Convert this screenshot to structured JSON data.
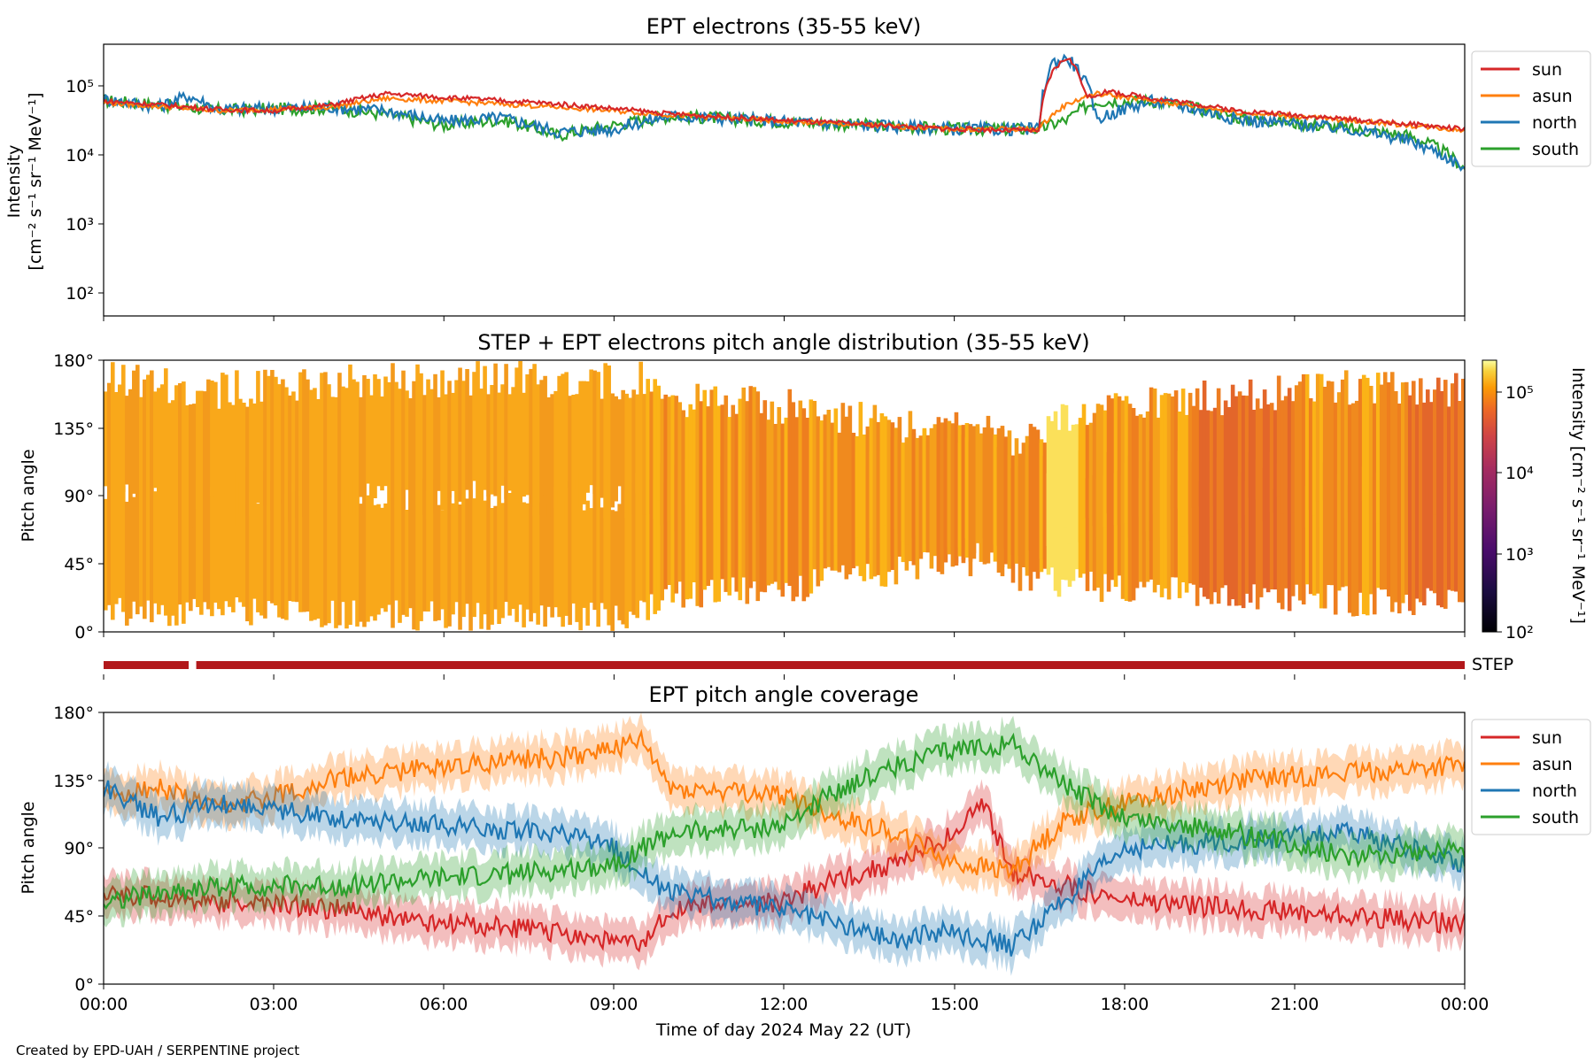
{
  "credit": "Created by EPD-UAH / SERPENTINE project",
  "colors": {
    "sun": "#d62728",
    "asun": "#ff7f0e",
    "north": "#1f77b4",
    "south": "#2ca02c",
    "step_bar": "#b2181b"
  },
  "chart_data": [
    {
      "type": "line",
      "title": "EPT electrons (35-55 keV)",
      "ylabel_line1": "Intensity",
      "ylabel_line2": "[cm⁻² s⁻¹ sr⁻¹ MeV⁻¹]",
      "yscale": "log",
      "ylim": [
        50,
        350000
      ],
      "yticks": [
        "10²",
        "10³",
        "10⁴",
        "10⁵"
      ],
      "xlim": [
        "00:00",
        "24:00"
      ],
      "legend_position": "outside-right-top",
      "legend": [
        "sun",
        "asun",
        "north",
        "south"
      ],
      "series": [
        {
          "name": "sun",
          "points": [
            [
              "00:00",
              55000
            ],
            [
              "02:00",
              42000
            ],
            [
              "03:00",
              40000
            ],
            [
              "04:00",
              48000
            ],
            [
              "05:00",
              70000
            ],
            [
              "06:00",
              62000
            ],
            [
              "08:00",
              50000
            ],
            [
              "10:00",
              36000
            ],
            [
              "12:00",
              29000
            ],
            [
              "15:00",
              22000
            ],
            [
              "16:30",
              21000
            ],
            [
              "16:45",
              150000
            ],
            [
              "17:00",
              230000
            ],
            [
              "17:20",
              60000
            ],
            [
              "17:40",
              75000
            ],
            [
              "18:30",
              60000
            ],
            [
              "20:00",
              40000
            ],
            [
              "22:00",
              30000
            ],
            [
              "24:00",
              22000
            ]
          ]
        },
        {
          "name": "asun",
          "points": [
            [
              "00:00",
              52000
            ],
            [
              "02:00",
              40000
            ],
            [
              "04:00",
              45000
            ],
            [
              "05:00",
              60000
            ],
            [
              "06:00",
              55000
            ],
            [
              "08:00",
              45000
            ],
            [
              "10:00",
              35000
            ],
            [
              "12:00",
              28000
            ],
            [
              "15:00",
              22000
            ],
            [
              "16:30",
              22000
            ],
            [
              "17:00",
              50000
            ],
            [
              "17:30",
              70000
            ],
            [
              "18:30",
              55000
            ],
            [
              "20:00",
              38000
            ],
            [
              "22:00",
              29000
            ],
            [
              "24:00",
              21000
            ]
          ]
        },
        {
          "name": "north",
          "points": [
            [
              "00:00",
              58000
            ],
            [
              "01:00",
              46000
            ],
            [
              "01:30",
              65000
            ],
            [
              "02:00",
              42000
            ],
            [
              "04:00",
              45000
            ],
            [
              "05:00",
              40000
            ],
            [
              "06:00",
              28000
            ],
            [
              "07:00",
              32000
            ],
            [
              "08:00",
              20000
            ],
            [
              "09:00",
              22000
            ],
            [
              "10:00",
              34000
            ],
            [
              "12:00",
              28000
            ],
            [
              "15:00",
              22000
            ],
            [
              "16:30",
              22000
            ],
            [
              "16:45",
              200000
            ],
            [
              "17:00",
              220000
            ],
            [
              "17:30",
              30000
            ],
            [
              "18:30",
              55000
            ],
            [
              "20:00",
              30000
            ],
            [
              "22:00",
              22000
            ],
            [
              "23:00",
              15000
            ],
            [
              "24:00",
              6000
            ]
          ]
        },
        {
          "name": "south",
          "points": [
            [
              "00:00",
              56000
            ],
            [
              "02:00",
              41000
            ],
            [
              "04:00",
              44000
            ],
            [
              "05:00",
              35000
            ],
            [
              "06:00",
              25000
            ],
            [
              "07:00",
              30000
            ],
            [
              "08:00",
              18000
            ],
            [
              "09:00",
              25000
            ],
            [
              "10:00",
              34000
            ],
            [
              "12:00",
              28000
            ],
            [
              "15:00",
              22000
            ],
            [
              "16:30",
              22000
            ],
            [
              "17:00",
              30000
            ],
            [
              "17:30",
              55000
            ],
            [
              "18:30",
              55000
            ],
            [
              "20:00",
              32000
            ],
            [
              "22:00",
              22000
            ],
            [
              "23:00",
              18000
            ],
            [
              "24:00",
              6000
            ]
          ]
        }
      ]
    },
    {
      "type": "heatmap",
      "title": "STEP + EPT electrons pitch angle distribution (35-55 keV)",
      "ylabel": "Pitch angle",
      "ylim": [
        0,
        180
      ],
      "yticks": [
        "0°",
        "45°",
        "90°",
        "135°",
        "180°"
      ],
      "xlim": [
        "00:00",
        "24:00"
      ],
      "colorbar": {
        "label": "Intensity [cm⁻² s⁻¹ sr⁻¹ MeV⁻¹]",
        "scale": "log",
        "range": [
          100,
          250000
        ],
        "ticks": [
          "10²",
          "10³",
          "10⁴",
          "10⁵"
        ],
        "colormap": "inferno-like"
      }
    },
    {
      "type": "bar",
      "label": "STEP",
      "segments": [
        [
          "00:00",
          "01:30"
        ],
        [
          "01:38",
          "24:00"
        ]
      ]
    },
    {
      "type": "line",
      "title": "EPT pitch angle coverage",
      "ylabel": "Pitch angle",
      "ylim": [
        0,
        180
      ],
      "yticks": [
        "0°",
        "45°",
        "90°",
        "135°",
        "180°"
      ],
      "xticks": [
        "00:00",
        "03:00",
        "06:00",
        "09:00",
        "12:00",
        "15:00",
        "18:00",
        "21:00",
        "00:00"
      ],
      "xlabel": "Time of day 2024 May 22 (UT)",
      "legend_position": "outside-right-top",
      "legend": [
        "sun",
        "asun",
        "north",
        "south"
      ],
      "series": [
        {
          "name": "sun",
          "points": [
            [
              "00:00",
              60
            ],
            [
              "02:00",
              55
            ],
            [
              "04:00",
              50
            ],
            [
              "06:00",
              40
            ],
            [
              "08:00",
              35
            ],
            [
              "09:30",
              25
            ],
            [
              "10:00",
              50
            ],
            [
              "12:00",
              55
            ],
            [
              "13:00",
              70
            ],
            [
              "14:00",
              80
            ],
            [
              "15:00",
              100
            ],
            [
              "15:30",
              120
            ],
            [
              "16:00",
              75
            ],
            [
              "18:00",
              55
            ],
            [
              "20:00",
              50
            ],
            [
              "22:00",
              45
            ],
            [
              "24:00",
              40
            ]
          ]
        },
        {
          "name": "asun",
          "points": [
            [
              "00:00",
              125
            ],
            [
              "01:00",
              130
            ],
            [
              "02:00",
              115
            ],
            [
              "03:00",
              125
            ],
            [
              "04:00",
              135
            ],
            [
              "06:00",
              145
            ],
            [
              "08:00",
              150
            ],
            [
              "09:30",
              160
            ],
            [
              "10:00",
              130
            ],
            [
              "12:00",
              125
            ],
            [
              "13:00",
              110
            ],
            [
              "14:00",
              100
            ],
            [
              "15:00",
              80
            ],
            [
              "16:00",
              75
            ],
            [
              "17:00",
              110
            ],
            [
              "18:00",
              120
            ],
            [
              "20:00",
              135
            ],
            [
              "22:00",
              140
            ],
            [
              "24:00",
              145
            ]
          ]
        },
        {
          "name": "north",
          "points": [
            [
              "00:00",
              130
            ],
            [
              "01:00",
              110
            ],
            [
              "02:00",
              120
            ],
            [
              "03:00",
              115
            ],
            [
              "04:00",
              110
            ],
            [
              "06:00",
              105
            ],
            [
              "08:00",
              100
            ],
            [
              "09:00",
              90
            ],
            [
              "10:00",
              60
            ],
            [
              "12:00",
              50
            ],
            [
              "13:00",
              40
            ],
            [
              "14:00",
              30
            ],
            [
              "15:00",
              35
            ],
            [
              "16:00",
              25
            ],
            [
              "18:00",
              90
            ],
            [
              "20:00",
              95
            ],
            [
              "22:00",
              100
            ],
            [
              "24:00",
              80
            ]
          ]
        },
        {
          "name": "south",
          "points": [
            [
              "00:00",
              55
            ],
            [
              "02:00",
              65
            ],
            [
              "04:00",
              65
            ],
            [
              "06:00",
              70
            ],
            [
              "08:00",
              75
            ],
            [
              "09:00",
              80
            ],
            [
              "10:00",
              100
            ],
            [
              "12:00",
              105
            ],
            [
              "13:00",
              130
            ],
            [
              "14:00",
              145
            ],
            [
              "15:00",
              155
            ],
            [
              "16:00",
              160
            ],
            [
              "17:00",
              130
            ],
            [
              "18:00",
              110
            ],
            [
              "20:00",
              100
            ],
            [
              "22:00",
              85
            ],
            [
              "24:00",
              90
            ]
          ]
        }
      ]
    }
  ]
}
